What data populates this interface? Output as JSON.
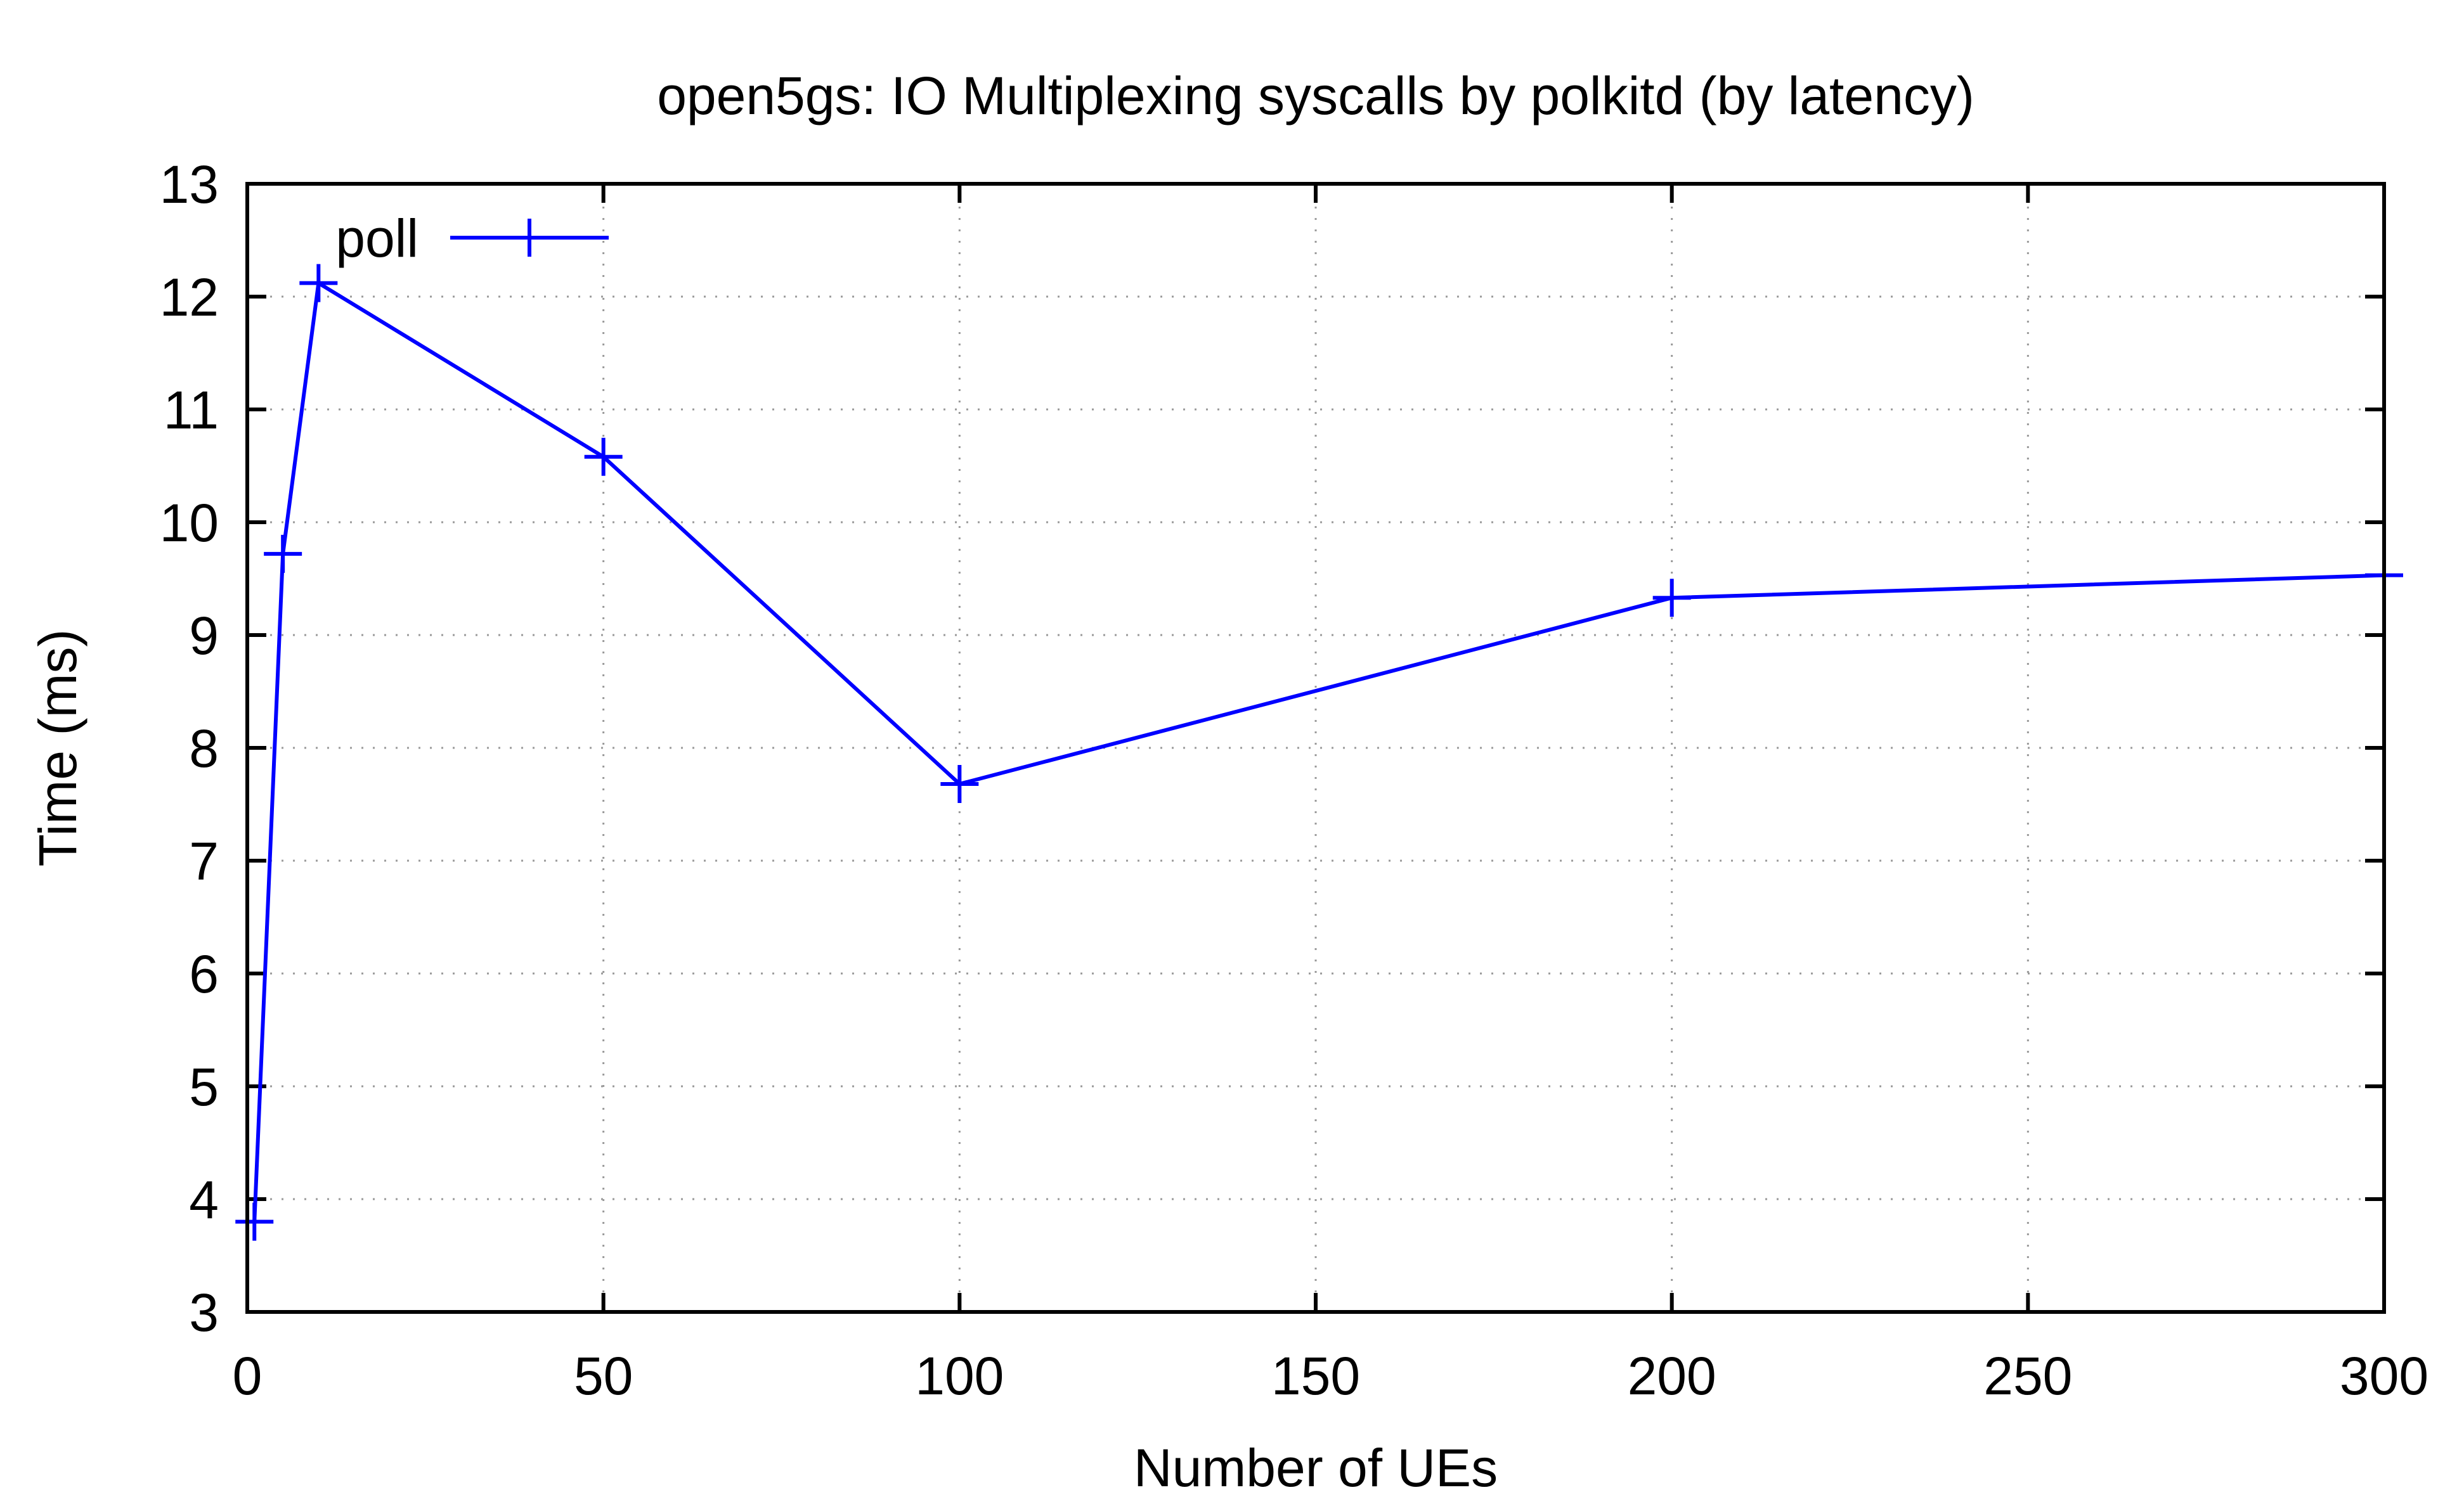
{
  "chart_data": {
    "type": "line",
    "title": "open5gs: IO Multiplexing syscalls by polkitd (by latency)",
    "xlabel": "Number of UEs",
    "ylabel": "Time (ms)",
    "xlim": [
      0,
      300
    ],
    "ylim": [
      3,
      13
    ],
    "xticks": [
      "0",
      "50",
      "100",
      "150",
      "200",
      "250",
      "300"
    ],
    "xtick_values": [
      0,
      50,
      100,
      150,
      200,
      250,
      300
    ],
    "yticks": [
      "3",
      "4",
      "5",
      "6",
      "7",
      "8",
      "9",
      "10",
      "11",
      "12",
      "13"
    ],
    "ytick_values": [
      3,
      4,
      5,
      6,
      7,
      8,
      9,
      10,
      11,
      12,
      13
    ],
    "grid": true,
    "legend_position": "top-left",
    "series": [
      {
        "name": "poll",
        "color": "#0000ff",
        "marker": "plus",
        "x": [
          1,
          5,
          10,
          50,
          100,
          200,
          300
        ],
        "y": [
          3.8,
          9.72,
          12.12,
          10.58,
          7.68,
          9.33,
          9.53
        ]
      }
    ]
  }
}
